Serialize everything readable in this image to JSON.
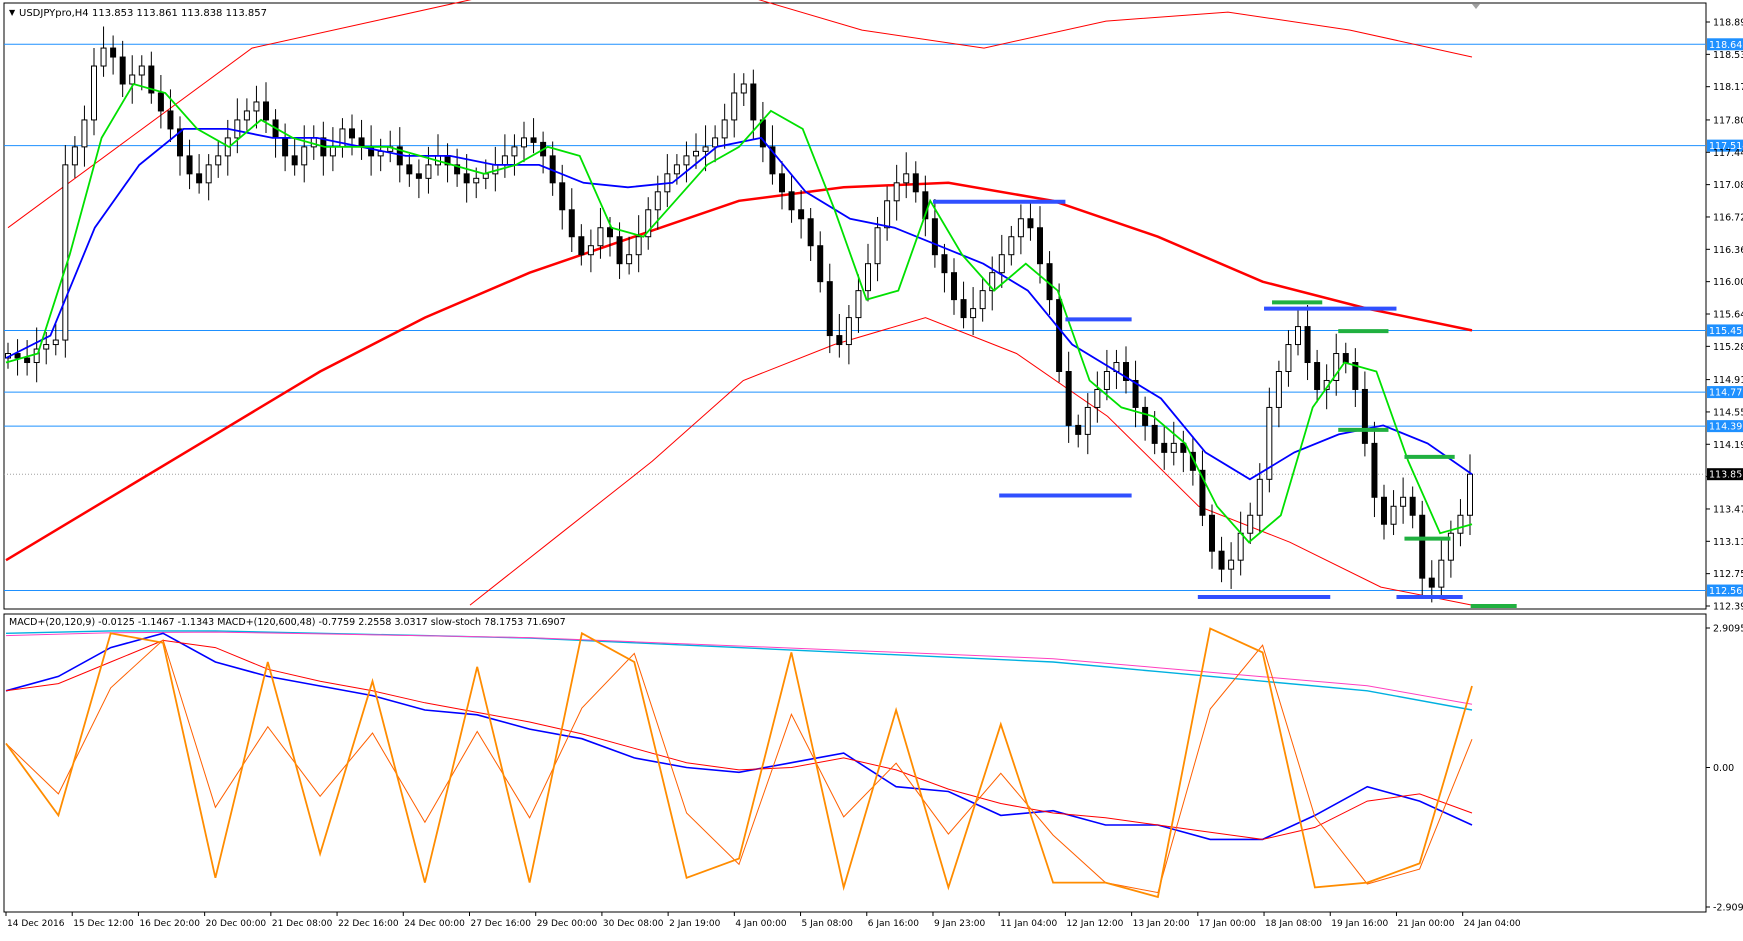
{
  "window": {
    "symbol_label": "USDJPYpro,H4",
    "ohlc_label": "113.853 113.861 113.838 113.857",
    "collapse_glyph": "▼"
  },
  "colors": {
    "background": "#ffffff",
    "frame": "#000000",
    "hline": "#1e90ff",
    "bull_body": "#ffffff",
    "bear_body": "#000000",
    "ma_fast": "#00e000",
    "ma_mid": "#0000ff",
    "ma_slow": "#ff0000",
    "ma_env": "#ff0000",
    "pattern_blue": "#3050ff",
    "pattern_green": "#20b040",
    "macd_fast_main": "#0000ff",
    "macd_fast_signal": "#ff0000",
    "macd_slow_main": "#00b0e0",
    "macd_slow_signal": "#ff40c0",
    "stoch_main": "#ff8c00",
    "stoch_signal": "#ff6000",
    "price_badge": "#1e90ff",
    "current_badge": "#000000"
  },
  "chart_data": [
    {
      "type": "candlestick",
      "title": "USDJPYpro,H4",
      "ylim": [
        112.39,
        118.89
      ],
      "y_ticks": [
        "118.890",
        "118.530",
        "118.170",
        "117.800",
        "117.440",
        "117.080",
        "116.720",
        "116.360",
        "116.000",
        "115.640",
        "115.280",
        "114.910",
        "114.550",
        "114.190",
        "113.830",
        "113.470",
        "113.110",
        "112.750",
        "112.390"
      ],
      "x_labels": [
        "14 Dec 2016",
        "15 Dec 12:00",
        "16 Dec 20:00",
        "20 Dec 00:00",
        "21 Dec 08:00",
        "22 Dec 16:00",
        "24 Dec 00:00",
        "27 Dec 16:00",
        "29 Dec 00:00",
        "30 Dec 08:00",
        "2 Jan 19:00",
        "4 Jan 00:00",
        "5 Jan 08:00",
        "6 Jan 16:00",
        "9 Jan 23:00",
        "11 Jan 04:00",
        "12 Jan 12:00",
        "13 Jan 20:00",
        "17 Jan 00:00",
        "18 Jan 08:00",
        "19 Jan 16:00",
        "21 Jan 00:00",
        "24 Jan 04:00"
      ],
      "horizontal_lines": [
        {
          "value": 118.642,
          "label": "118.642"
        },
        {
          "value": 117.514,
          "label": "117.514"
        },
        {
          "value": 115.457,
          "label": "115.457"
        },
        {
          "value": 114.771,
          "label": "114.771"
        },
        {
          "value": 114.392,
          "label": "114.392"
        },
        {
          "value": 112.562,
          "label": "112.562"
        }
      ],
      "current_price": {
        "value": 113.857,
        "label": "113.857"
      },
      "close_series": [
        115.2,
        115.15,
        115.1,
        115.25,
        115.3,
        115.35,
        117.3,
        117.5,
        117.8,
        118.4,
        118.6,
        118.5,
        118.2,
        118.3,
        118.4,
        118.1,
        117.9,
        117.7,
        117.4,
        117.2,
        117.1,
        117.3,
        117.4,
        117.6,
        117.8,
        117.9,
        118.0,
        117.8,
        117.6,
        117.4,
        117.3,
        117.5,
        117.6,
        117.4,
        117.5,
        117.7,
        117.6,
        117.5,
        117.4,
        117.45,
        117.5,
        117.3,
        117.2,
        117.15,
        117.3,
        117.4,
        117.3,
        117.2,
        117.1,
        117.15,
        117.2,
        117.3,
        117.4,
        117.5,
        117.6,
        117.55,
        117.4,
        117.1,
        116.8,
        116.5,
        116.3,
        116.4,
        116.6,
        116.5,
        116.2,
        116.3,
        116.5,
        116.8,
        117.0,
        117.2,
        117.3,
        117.4,
        117.45,
        117.5,
        117.6,
        117.8,
        118.1,
        118.2,
        117.8,
        117.5,
        117.2,
        117.0,
        116.8,
        116.7,
        116.4,
        116.0,
        115.4,
        115.3,
        115.6,
        115.9,
        116.2,
        116.6,
        116.9,
        117.1,
        117.2,
        117.0,
        116.7,
        116.3,
        116.1,
        115.8,
        115.6,
        115.7,
        115.9,
        116.1,
        116.3,
        116.5,
        116.7,
        116.6,
        116.2,
        115.8,
        115.0,
        114.4,
        114.3,
        114.6,
        114.8,
        115.0,
        115.1,
        114.9,
        114.6,
        114.4,
        114.2,
        114.1,
        114.2,
        114.1,
        113.9,
        113.4,
        113.0,
        112.8,
        112.9,
        113.2,
        113.4,
        113.8,
        114.6,
        115.0,
        115.3,
        115.5,
        115.1,
        114.8,
        114.9,
        115.2,
        115.1,
        114.8,
        114.2,
        113.6,
        113.3,
        113.5,
        113.6,
        113.4,
        112.7,
        112.6,
        112.9,
        113.2,
        113.4,
        113.857
      ],
      "ma_fast_series": [
        115.1,
        115.2,
        116.3,
        117.6,
        118.2,
        118.1,
        117.7,
        117.5,
        117.8,
        117.6,
        117.5,
        117.5,
        117.5,
        117.4,
        117.3,
        117.2,
        117.3,
        117.5,
        117.4,
        116.6,
        116.5,
        116.9,
        117.3,
        117.5,
        117.9,
        117.7,
        116.8,
        115.8,
        115.9,
        116.9,
        116.3,
        115.9,
        116.2,
        115.9,
        114.9,
        114.6,
        114.5,
        114.2,
        113.5,
        113.1,
        113.4,
        114.6,
        115.1,
        115.0,
        114.0,
        113.2,
        113.3
      ],
      "ma_mid_series": [
        115.15,
        115.4,
        116.6,
        117.3,
        117.7,
        117.7,
        117.6,
        117.6,
        117.5,
        117.4,
        117.4,
        117.3,
        117.3,
        117.1,
        117.05,
        117.1,
        117.5,
        117.6,
        117.0,
        116.7,
        116.6,
        116.4,
        116.2,
        115.9,
        115.3,
        115.0,
        114.7,
        114.1,
        113.8,
        114.1,
        114.3,
        114.4,
        114.2,
        113.857
      ],
      "ma_slow_series": [
        112.9,
        113.6,
        114.3,
        115.0,
        115.6,
        116.1,
        116.5,
        116.9,
        117.05,
        117.1,
        116.9,
        116.5,
        116.0,
        115.7,
        115.457
      ],
      "ma_env_upper_series": [
        116.6,
        117.6,
        118.6,
        118.9,
        119.2,
        119.3,
        119.2,
        118.8,
        118.6,
        118.9,
        119.0,
        118.8,
        118.5
      ],
      "ma_env_lower_series": [
        112.4,
        113.2,
        114.0,
        114.9,
        115.3,
        115.6,
        115.2,
        114.5,
        113.5,
        113.1,
        112.6,
        112.4
      ],
      "pattern_levels_blue": [
        {
          "value": 116.89,
          "from": "9 Jan 23:00",
          "to": "12 Jan 12:00"
        },
        {
          "value": 115.58,
          "from": "12 Jan 12:00",
          "to": "13 Jan 20:00"
        },
        {
          "value": 113.62,
          "from": "11 Jan 04:00",
          "to": "13 Jan 20:00"
        },
        {
          "value": 115.7,
          "from": "18 Jan 08:00",
          "to": "21 Jan 00:00"
        },
        {
          "value": 112.49,
          "from": "17 Jan 00:00",
          "to": "19 Jan 16:00"
        },
        {
          "value": 112.49,
          "from": "21 Jan 00:00",
          "to": "24 Jan 04:00"
        }
      ],
      "pattern_levels_green": [
        {
          "value": 115.77,
          "from": "18 Jan 08:00",
          "to": "19 Jan 16:00"
        },
        {
          "value": 115.45,
          "from": "19 Jan 16:00",
          "to": "21 Jan 00:00"
        },
        {
          "value": 114.35,
          "from": "19 Jan 16:00",
          "to": "21 Jan 00:00"
        },
        {
          "value": 114.05,
          "from": "21 Jan 00:00",
          "to": "24 Jan 04:00"
        },
        {
          "value": 113.14,
          "from": "21 Jan 00:00",
          "to": "21 Jan 00:00"
        },
        {
          "value": 112.39,
          "from": "24 Jan 04:00",
          "to": "24 Jan 04:00"
        }
      ]
    },
    {
      "type": "line",
      "title": "MACD+(20,120,9) -0.0125 -1.1467 -1.1343  MACD+(120,600,48) -0.7759 2.2558 3.0317  slow-stoch 78.1753 71.6907",
      "ylim": [
        -2.9095,
        2.9095
      ],
      "y_ticks": [
        "2.9095",
        "0.00",
        "-2.9095"
      ],
      "series": [
        {
          "name": "MACD+(20,120,9)",
          "values": [
            1.6,
            1.9,
            2.5,
            2.8,
            2.2,
            1.9,
            1.7,
            1.5,
            1.2,
            1.1,
            0.8,
            0.6,
            0.2,
            0.0,
            -0.1,
            0.1,
            0.3,
            -0.4,
            -0.5,
            -1.0,
            -0.9,
            -1.2,
            -1.2,
            -1.5,
            -1.5,
            -1.0,
            -0.4,
            -0.7,
            -1.2
          ]
        },
        {
          "name": "MACD+(120,600,48)",
          "values": [
            2.8,
            2.85,
            2.85,
            2.8,
            2.75,
            2.7,
            2.6,
            2.5,
            2.4,
            2.3,
            2.2,
            2.0,
            1.8,
            1.6,
            1.2
          ]
        },
        {
          "name": "slow-stoch",
          "values": [
            0.5,
            -1.0,
            2.8,
            2.6,
            -2.3,
            2.2,
            -1.8,
            1.8,
            -2.4,
            2.1,
            -2.4,
            2.8,
            2.2,
            -2.3,
            -1.9,
            2.4,
            -2.5,
            1.2,
            -2.5,
            0.9,
            -2.4,
            -2.4,
            -2.7,
            2.9,
            2.4,
            -2.5,
            -2.4,
            -2.0,
            1.7
          ]
        }
      ]
    }
  ]
}
